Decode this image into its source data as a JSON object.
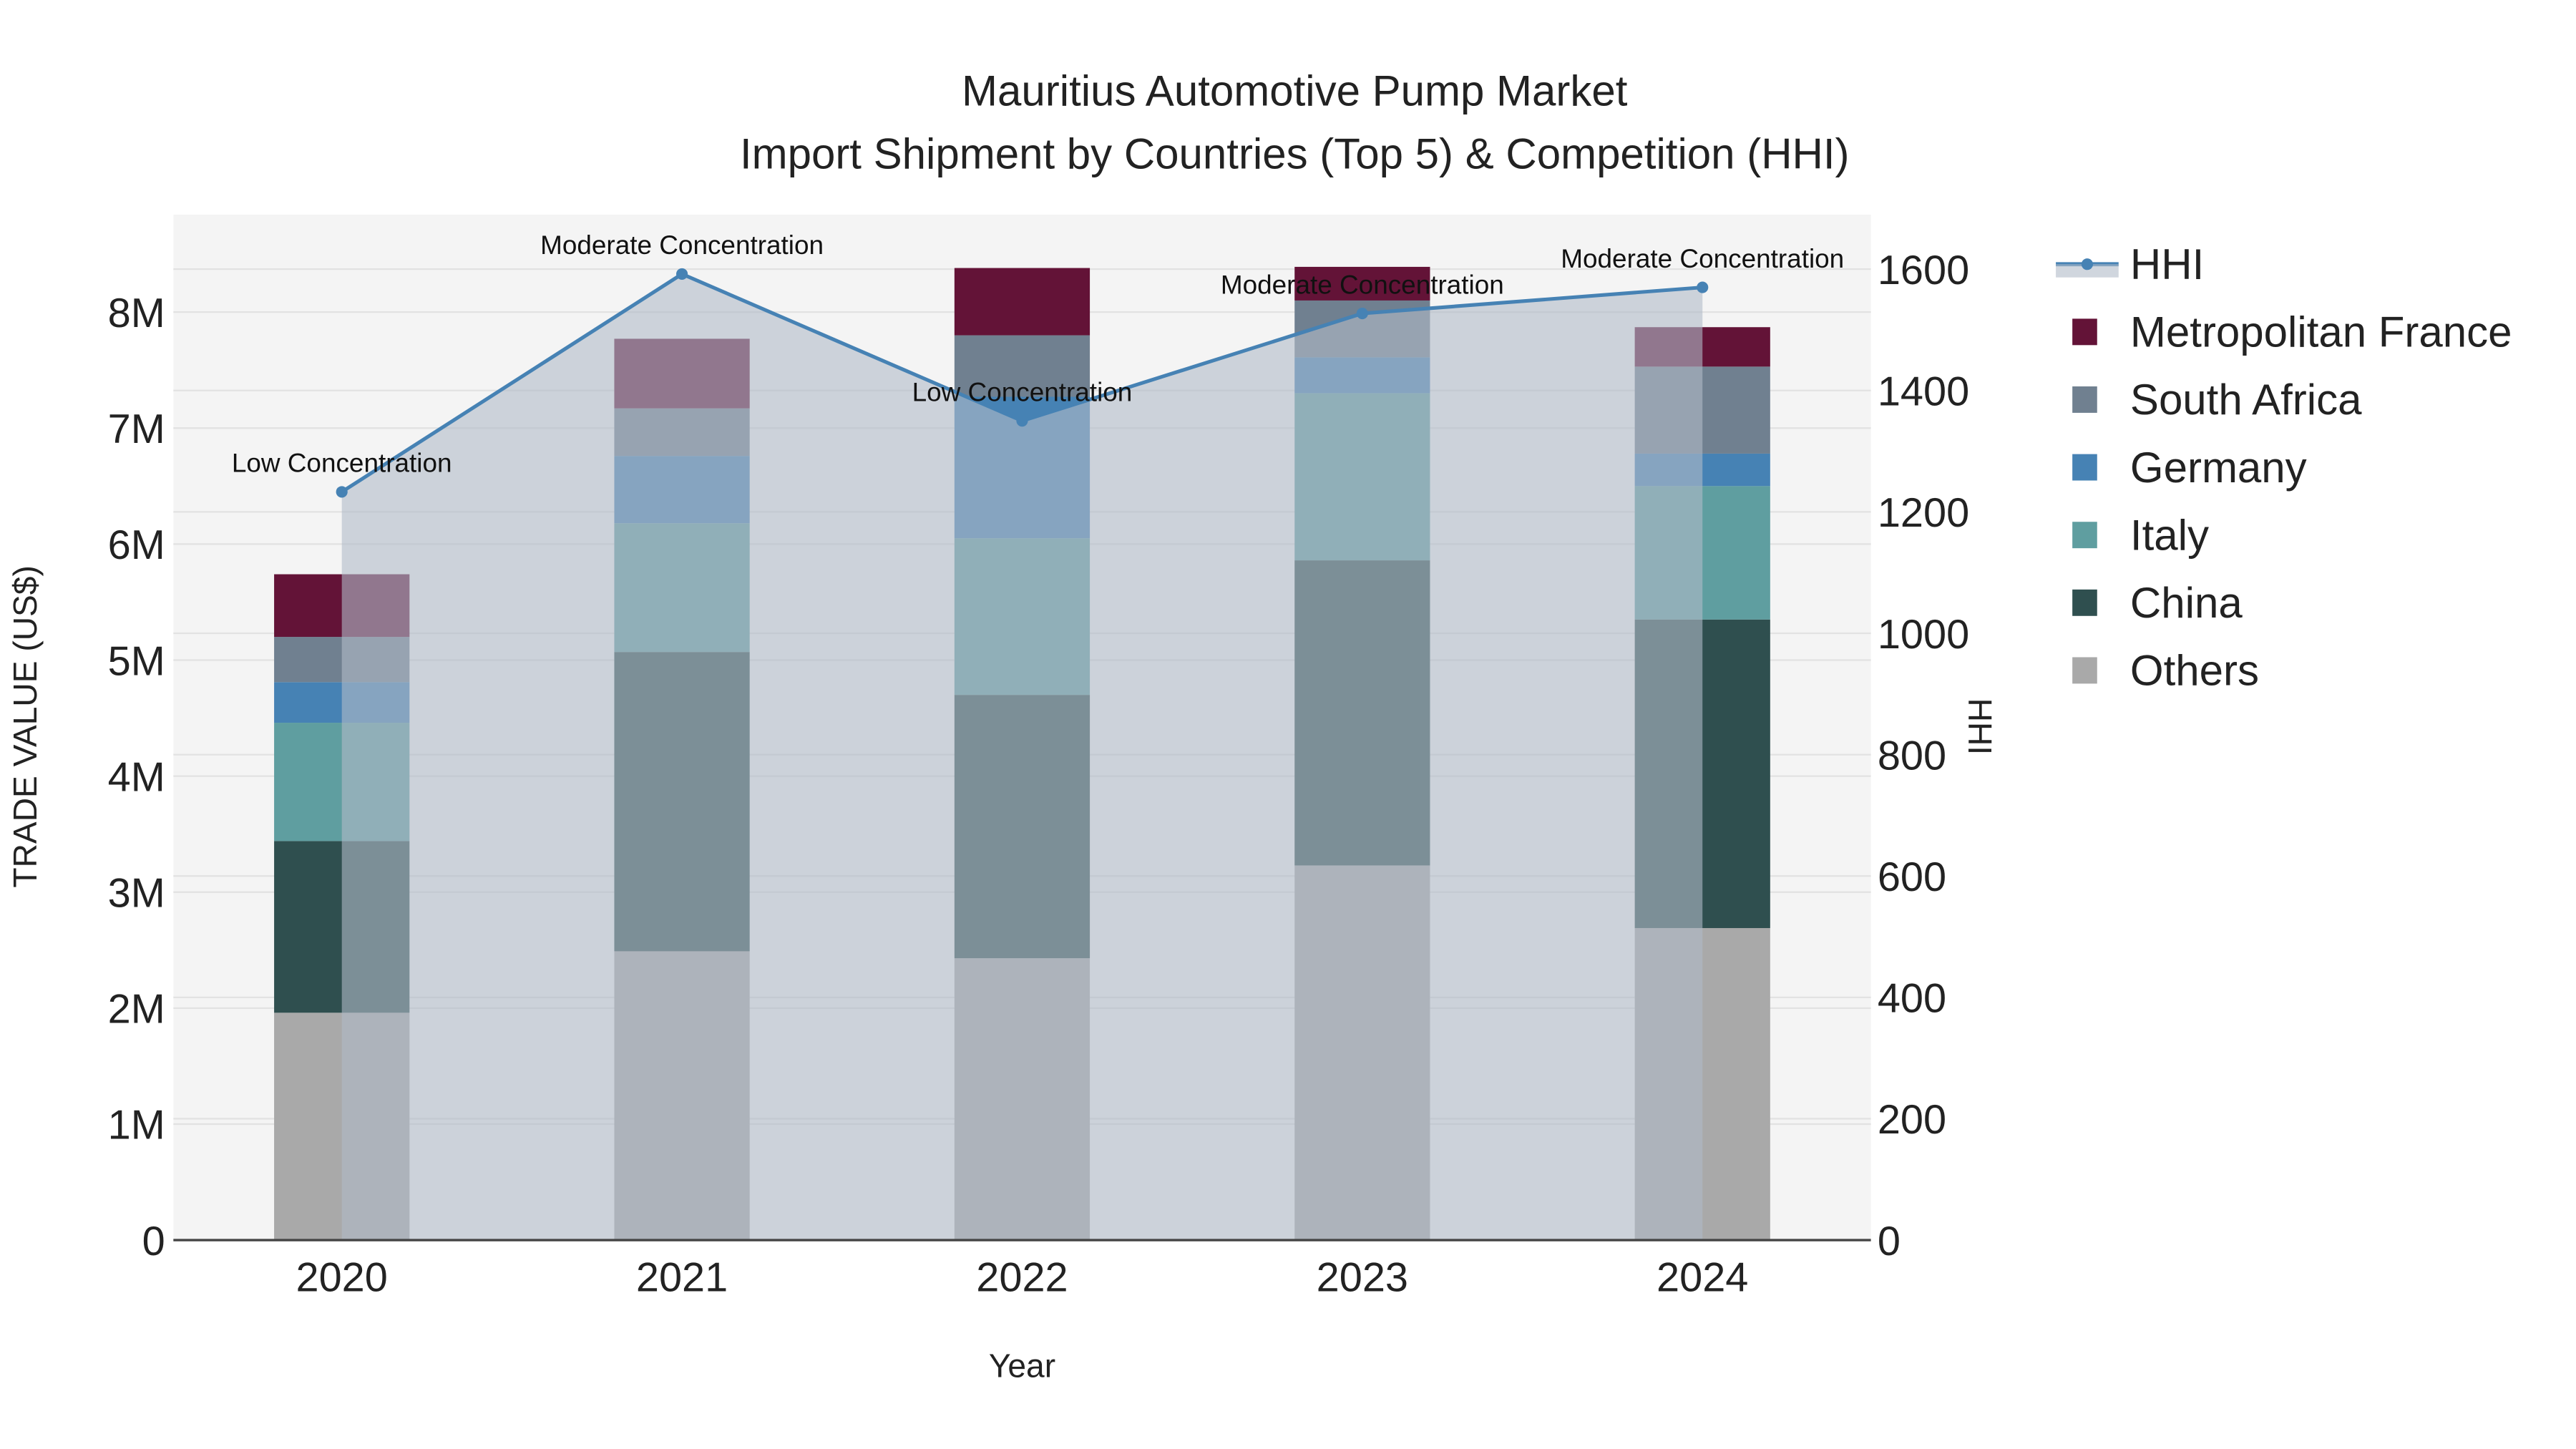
{
  "chart_data": {
    "type": "bar",
    "title": "Mauritius Automotive Pump Market",
    "subtitle": "Import Shipment by Countries (Top 5) & Competition (HHI)",
    "xlabel": "Year",
    "ylabel": "TRADE VALUE (US$)",
    "y2label": "HHI",
    "categories": [
      "2020",
      "2021",
      "2022",
      "2023",
      "2024"
    ],
    "ylim": [
      0,
      8800000
    ],
    "y2lim": [
      0,
      1690
    ],
    "yticks": [
      {
        "v": 0,
        "label": "0"
      },
      {
        "v": 1000000,
        "label": "1M"
      },
      {
        "v": 2000000,
        "label": "2M"
      },
      {
        "v": 3000000,
        "label": "3M"
      },
      {
        "v": 4000000,
        "label": "4M"
      },
      {
        "v": 5000000,
        "label": "5M"
      },
      {
        "v": 6000000,
        "label": "6M"
      },
      {
        "v": 7000000,
        "label": "7M"
      },
      {
        "v": 8000000,
        "label": "8M"
      }
    ],
    "y2ticks": [
      0,
      200,
      400,
      600,
      800,
      1000,
      1200,
      1400,
      1600
    ],
    "series": [
      {
        "name": "Others",
        "color": "#a9a9a9",
        "values": [
          1960000,
          2490000,
          2430000,
          3230000,
          2690000
        ]
      },
      {
        "name": "China",
        "color": "#2f4f4f",
        "values": [
          1480000,
          2580000,
          2270000,
          2630000,
          2660000
        ]
      },
      {
        "name": "Italy",
        "color": "#5f9ea0",
        "values": [
          1020000,
          1110000,
          1350000,
          1440000,
          1150000
        ]
      },
      {
        "name": "Germany",
        "color": "#4682b4",
        "values": [
          350000,
          580000,
          1220000,
          310000,
          280000
        ]
      },
      {
        "name": "South Africa",
        "color": "#708090",
        "values": [
          390000,
          410000,
          530000,
          490000,
          750000
        ]
      },
      {
        "name": "Metropolitan France",
        "color": "#631337",
        "values": [
          540000,
          600000,
          580000,
          290000,
          340000
        ]
      }
    ],
    "hhi": {
      "name": "HHI",
      "color": "#4682b4",
      "values": [
        1233,
        1592,
        1350,
        1527,
        1570
      ],
      "annotations": [
        "Low Concentration",
        "Moderate Concentration",
        "Low Concentration",
        "Moderate Concentration",
        "Moderate Concentration"
      ]
    },
    "legend_position": "right",
    "grid": true
  }
}
